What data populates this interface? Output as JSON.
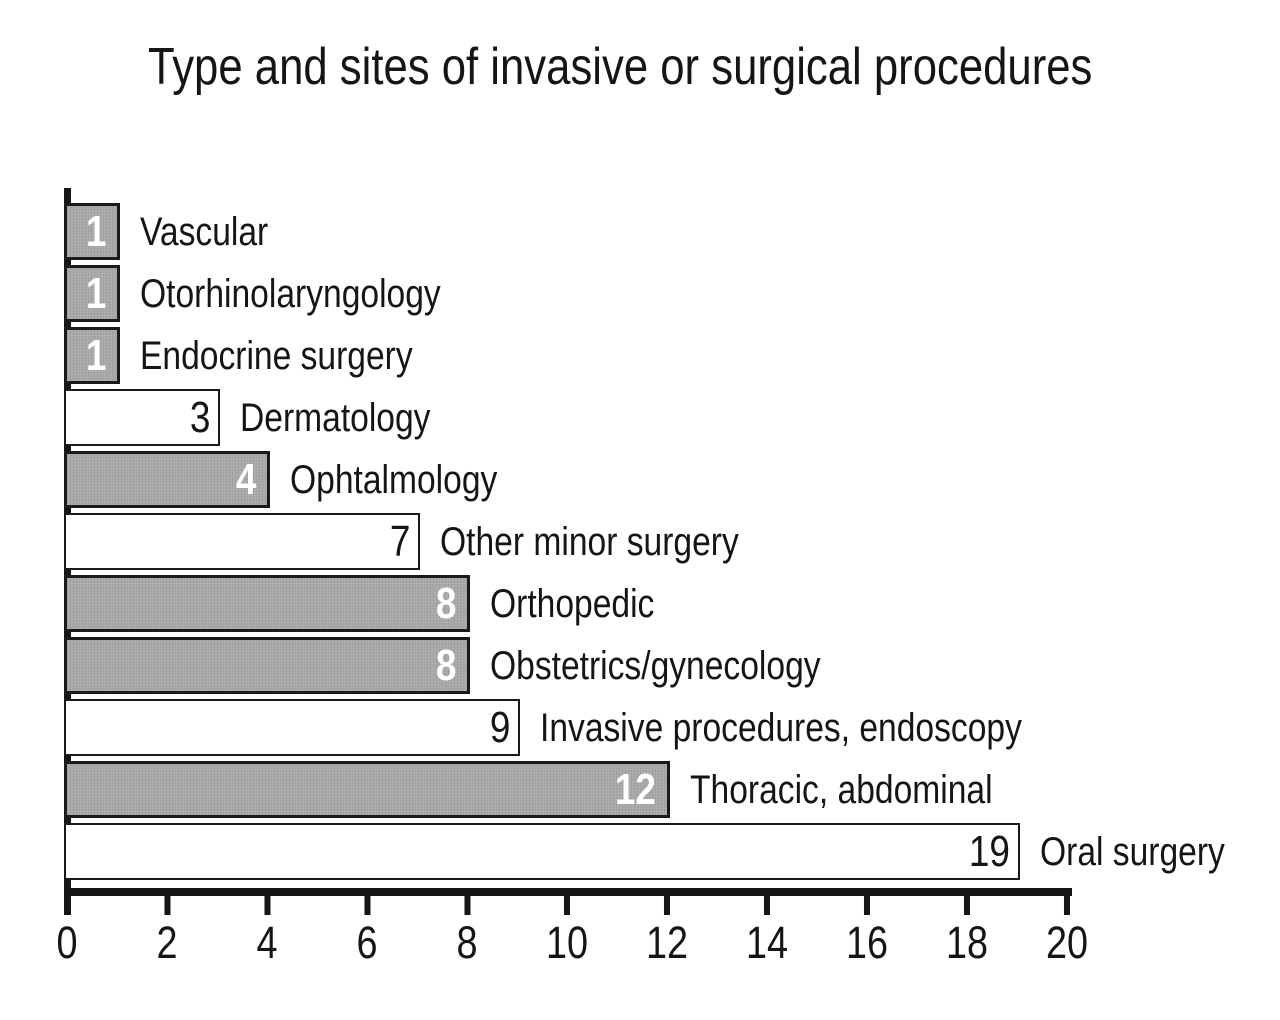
{
  "title": "Type and sites of invasive or surgical procedures",
  "chart_data": {
    "type": "bar",
    "orientation": "horizontal",
    "title": "Type and sites of invasive or surgical procedures",
    "categories": [
      "Vascular",
      "Otorhinolaryngology",
      "Endocrine surgery",
      "Dermatology",
      "Ophtalmology",
      "Other minor surgery",
      "Orthopedic",
      "Obstetrics/gynecology",
      "Invasive procedures, endoscopy",
      "Thoracic, abdominal",
      "Oral surgery"
    ],
    "values": [
      1,
      1,
      1,
      3,
      4,
      7,
      8,
      8,
      9,
      12,
      19
    ],
    "bar_fills": [
      "gray",
      "gray",
      "gray",
      "white",
      "gray",
      "white",
      "gray",
      "gray",
      "white",
      "gray",
      "white"
    ],
    "xlabel": "",
    "ylabel": "",
    "xlim": [
      0,
      20
    ],
    "x_tick_step": 2,
    "grid": false,
    "legend": false,
    "data_labels": "inside-end",
    "colors": {
      "bar_gray": "#a9a9a9",
      "bar_white": "#ffffff",
      "bar_border": "#1a1a1a",
      "axis": "#161616",
      "text": "#151515",
      "value_on_gray": "#ffffff",
      "value_on_white": "#151515"
    }
  },
  "rows": [
    {
      "label": "Vascular",
      "value": 1,
      "value_text": "1",
      "fill": "gray"
    },
    {
      "label": "Otorhinolaryngology",
      "value": 1,
      "value_text": "1",
      "fill": "gray"
    },
    {
      "label": "Endocrine surgery",
      "value": 1,
      "value_text": "1",
      "fill": "gray"
    },
    {
      "label": "Dermatology",
      "value": 3,
      "value_text": "3",
      "fill": "white"
    },
    {
      "label": "Ophtalmology",
      "value": 4,
      "value_text": "4",
      "fill": "gray"
    },
    {
      "label": "Other minor surgery",
      "value": 7,
      "value_text": "7",
      "fill": "white"
    },
    {
      "label": "Orthopedic",
      "value": 8,
      "value_text": "8",
      "fill": "gray"
    },
    {
      "label": "Obstetrics/gynecology",
      "value": 8,
      "value_text": "8",
      "fill": "gray"
    },
    {
      "label": "Invasive procedures, endoscopy",
      "value": 9,
      "value_text": "9",
      "fill": "white"
    },
    {
      "label": "Thoracic, abdominal",
      "value": 12,
      "value_text": "12",
      "fill": "gray"
    },
    {
      "label": "Oral surgery",
      "value": 19,
      "value_text": "19",
      "fill": "white"
    }
  ],
  "x_axis": {
    "ticks": [
      "0",
      "2",
      "4",
      "6",
      "8",
      "10",
      "12",
      "14",
      "16",
      "18",
      "20"
    ]
  }
}
